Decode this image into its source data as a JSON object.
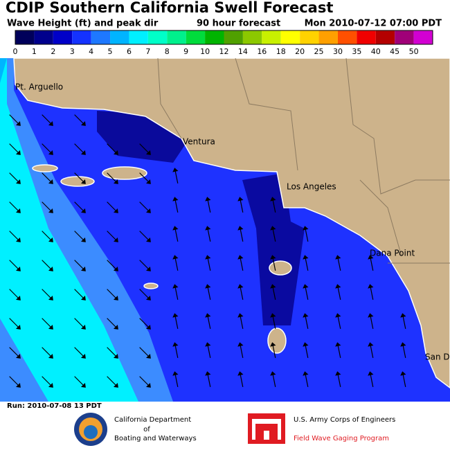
{
  "header": {
    "title": "CDIP Southern California Swell Forecast",
    "subtitle": "Wave Height (ft) and peak dir",
    "forecast": "90 hour forecast",
    "valid_time": "Mon 2010-07-12 07:00 PDT"
  },
  "colorbar": {
    "ticks": [
      0,
      1,
      2,
      3,
      4,
      5,
      6,
      7,
      8,
      9,
      10,
      12,
      14,
      16,
      18,
      20,
      25,
      30,
      35,
      40,
      45,
      50
    ],
    "colors": [
      "#00005a",
      "#00008c",
      "#0000c8",
      "#1432ff",
      "#1e78ff",
      "#00b4ff",
      "#00f0ff",
      "#00ffc8",
      "#00f08c",
      "#00dc3c",
      "#00b400",
      "#50a000",
      "#8cc800",
      "#c8f000",
      "#ffff00",
      "#ffd200",
      "#ffa000",
      "#ff5000",
      "#f00000",
      "#b40000",
      "#a00078",
      "#d200d2"
    ]
  },
  "places": [
    "Pt. Arguello",
    "Ventura",
    "Los Angeles",
    "Dana Point",
    "San D"
  ],
  "footer": {
    "run": "Run: 2010-07-08 13 PDT",
    "agency1": [
      "California Department",
      "of",
      "Boating and Waterways"
    ],
    "agency2": "U.S. Army Corps of Engineers",
    "agency2_program": "Field Wave Gaging Program"
  }
}
